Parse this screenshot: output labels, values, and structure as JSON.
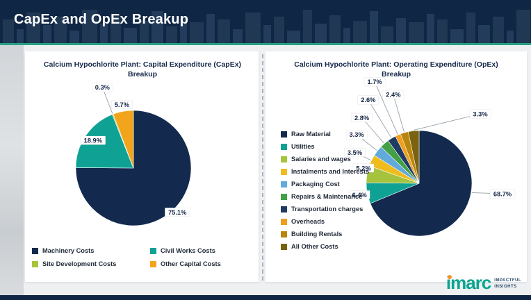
{
  "slide": {
    "title": "CapEx and OpEx Breakup"
  },
  "brand_colors": {
    "header_navy": "#0f2644",
    "accent_teal": "#27a082",
    "logo_teal": "#0aa58f",
    "logo_orange": "#f7941d"
  },
  "chart_data": [
    {
      "type": "pie",
      "title": "Calcium Hypochlorite Plant: Capital Expenditure (CapEx) Breakup",
      "title_lines": [
        "Calcium Hypochlorite Plant: Capital Expenditure (CapEx)",
        "Breakup"
      ],
      "labels": [
        "Machinery Costs",
        "Civil Works Costs",
        "Site Development Costs",
        "Other Capital Costs"
      ],
      "values": [
        75.1,
        18.9,
        0.3,
        5.7
      ],
      "display_labels": [
        "75.1%",
        "18.9%",
        "0.3%",
        "5.7%"
      ],
      "colors": [
        "#13294e",
        "#0fa294",
        "#a6c33d",
        "#f2a51b"
      ],
      "legend_position": "bottom",
      "start_angle_deg": 0,
      "direction": "clockwise"
    },
    {
      "type": "pie",
      "title": "Calcium Hypochlorite Plant: Operating Expenditure (OpEx) Breakup",
      "title_lines": [
        "Calcium Hypochlorite Plant: Operating Expenditure (OpEx)",
        "Breakup"
      ],
      "labels": [
        "Raw Material",
        "Utilities",
        "Salaries and wages",
        "Instalments and Interests",
        "Packaging Cost",
        "Repairs & Maintenance",
        "Transportation charges",
        "Overheads",
        "Building Rentals",
        "All Other Costs"
      ],
      "values": [
        68.7,
        6.4,
        5.2,
        3.5,
        3.3,
        2.8,
        2.6,
        1.7,
        2.4,
        3.3
      ],
      "display_labels": [
        "68.7%",
        "6.4%",
        "5.2%",
        "3.5%",
        "3.3%",
        "2.8%",
        "2.6%",
        "1.7%",
        "2.4%",
        "3.3%"
      ],
      "colors": [
        "#13294e",
        "#0fa294",
        "#a6c33d",
        "#eebc1d",
        "#62a9dc",
        "#43a047",
        "#1f3a63",
        "#ef9e1e",
        "#b8860b",
        "#7a6210"
      ],
      "legend_position": "left",
      "start_angle_deg": 0,
      "direction": "clockwise"
    }
  ],
  "logo": {
    "wordmark": "imarc",
    "tagline": [
      "IMPACTFUL",
      "INSIGHTS"
    ]
  }
}
